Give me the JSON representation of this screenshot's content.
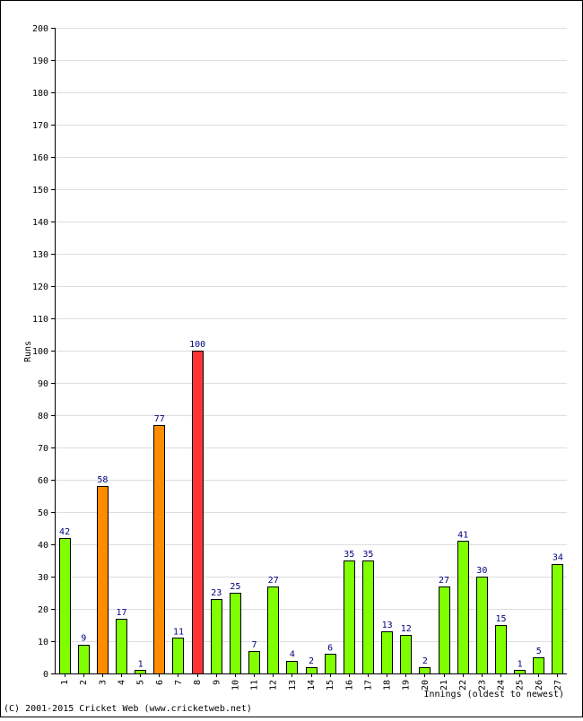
{
  "chart_data": {
    "type": "bar",
    "title": "",
    "ylabel": "Runs",
    "xlabel": "Innings (oldest to newest)",
    "ylim": [
      0,
      200
    ],
    "ytick_step": 10,
    "grid": true,
    "categories": [
      "1",
      "2",
      "3",
      "4",
      "5",
      "6",
      "7",
      "8",
      "9",
      "10",
      "11",
      "12",
      "13",
      "14",
      "15",
      "16",
      "17",
      "18",
      "19",
      "20",
      "21",
      "22",
      "23",
      "24",
      "25",
      "26",
      "27"
    ],
    "values": [
      42,
      9,
      58,
      17,
      1,
      77,
      11,
      100,
      23,
      25,
      7,
      27,
      4,
      2,
      6,
      35,
      35,
      13,
      12,
      2,
      27,
      41,
      30,
      15,
      1,
      5,
      34
    ],
    "colors": {
      "under_50": "#80ff00",
      "fifty": "#ff8c00",
      "hundred": "#ff3333",
      "grid": "#dddddd",
      "axis": "#000000",
      "value_label": "#000080"
    }
  },
  "footer": {
    "credit": "(C) 2001-2015 Cricket Web (www.cricketweb.net)"
  }
}
